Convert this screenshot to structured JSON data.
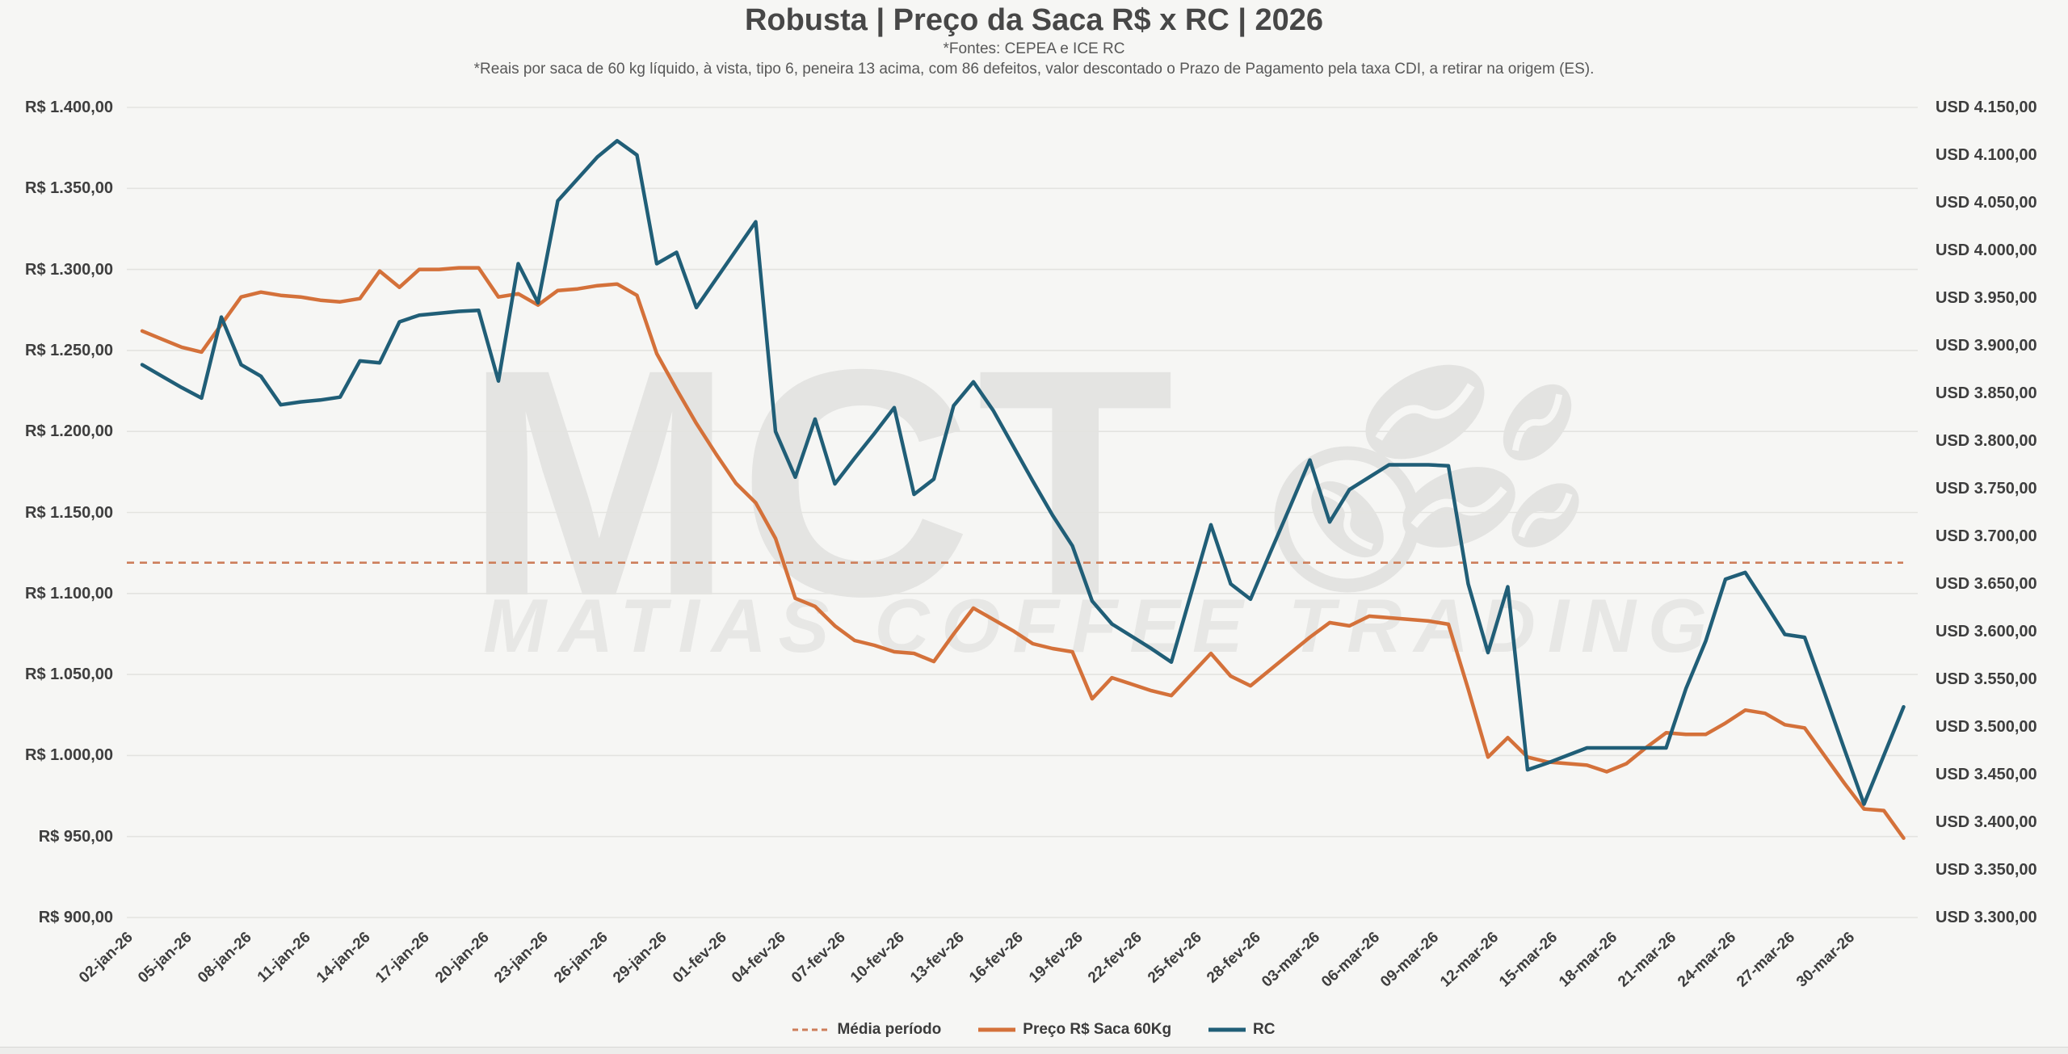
{
  "header": {
    "title": "Robusta | Preço da Saca R$ x RC | 2026",
    "subtitle1": "*Fontes: CEPEA e ICE RC",
    "subtitle2": "*Reais por saca de 60 kg líquido, à vista, tipo 6, peneira 13 acima, com 86 defeitos, valor descontado o Prazo de Pagamento pela taxa CDI, a retirar na origem (ES)."
  },
  "watermark": {
    "acronym": "MCT",
    "name": "MATIAS COFFEE TRADING",
    "color": "#e4e4e2"
  },
  "legend": [
    {
      "label": "Média período",
      "style": "dashed",
      "color": "#cd7e5a"
    },
    {
      "label": "Preço R$ Saca 60Kg",
      "style": "solid",
      "color": "#d4713a"
    },
    {
      "label": "RC",
      "style": "solid",
      "color": "#205e77"
    }
  ],
  "colors": {
    "background": "#f6f6f4",
    "gridline": "#e3e3e0",
    "media_line": "#cd7e5a",
    "price_line": "#d4713a",
    "rc_line": "#205e77",
    "axis_text": "#3e3e3e"
  },
  "chart_data": {
    "type": "line",
    "title": "Robusta | Preço da Saca R$ x RC | 2026",
    "grid": true,
    "legend_position": "bottom",
    "points_per_x_label": 3,
    "x_tick_labels": [
      "02-jan-26",
      "05-jan-26",
      "08-jan-26",
      "11-jan-26",
      "14-jan-26",
      "17-jan-26",
      "20-jan-26",
      "23-jan-26",
      "26-jan-26",
      "29-jan-26",
      "01-fev-26",
      "04-fev-26",
      "07-fev-26",
      "10-fev-26",
      "13-fev-26",
      "16-fev-26",
      "19-fev-26",
      "22-fev-26",
      "25-fev-26",
      "28-fev-26",
      "03-mar-26",
      "06-mar-26",
      "09-mar-26",
      "12-mar-26",
      "15-mar-26",
      "18-mar-26",
      "21-mar-26",
      "24-mar-26",
      "27-mar-26",
      "30-mar-26"
    ],
    "left_axis": {
      "currency": "R$",
      "min": 900,
      "max": 1400,
      "step": 50,
      "ticks": [
        "R$ 1.400,00",
        "R$ 1.350,00",
        "R$ 1.300,00",
        "R$ 1.250,00",
        "R$ 1.200,00",
        "R$ 1.150,00",
        "R$ 1.100,00",
        "R$ 1.050,00",
        "R$ 1.000,00",
        "R$ 950,00",
        "R$ 900,00"
      ]
    },
    "right_axis": {
      "currency": "USD",
      "min": 3300,
      "max": 4150,
      "step": 50,
      "ticks": [
        "USD 4.150,00",
        "USD 4.100,00",
        "USD 4.050,00",
        "USD 4.000,00",
        "USD 3.950,00",
        "USD 3.900,00",
        "USD 3.850,00",
        "USD 3.800,00",
        "USD 3.750,00",
        "USD 3.700,00",
        "USD 3.650,00",
        "USD 3.600,00",
        "USD 3.550,00",
        "USD 3.500,00",
        "USD 3.450,00",
        "USD 3.400,00",
        "USD 3.350,00",
        "USD 3.300,00"
      ]
    },
    "media_periodo": {
      "axis": "left",
      "value": 1119
    },
    "series": [
      {
        "name": "Preço R$ Saca 60Kg",
        "axis": "left",
        "color": "#d4713a",
        "values": [
          1262,
          1257,
          1252,
          1249,
          1266,
          1283,
          1286,
          1284,
          1283,
          1281,
          1280,
          1282,
          1299,
          1289,
          1300,
          1300,
          1301,
          1301,
          1283,
          1285,
          1278,
          1287,
          1288,
          1290,
          1291,
          1284,
          1248,
          1226,
          1205,
          1186,
          1168,
          1156,
          1134,
          1097,
          1092,
          1080,
          1071,
          1068,
          1064,
          1063,
          1058,
          1075,
          1091,
          1084,
          1077,
          1069,
          1066,
          1064,
          1035,
          1048,
          1044,
          1040,
          1037,
          1050,
          1063,
          1049,
          1043,
          1053,
          1063,
          1073,
          1082,
          1080,
          1086,
          1085,
          1084,
          1083,
          1081,
          1041,
          999,
          1011,
          999,
          996,
          995,
          994,
          990,
          995,
          1005,
          1014,
          1013,
          1013,
          1020,
          1028,
          1026,
          1019,
          1017,
          1000,
          983,
          967,
          966,
          949
        ]
      },
      {
        "name": "RC",
        "axis": "right",
        "color": "#205e77",
        "values": [
          3880,
          3868,
          3856,
          3845,
          3930,
          3880,
          3868,
          3838,
          3841,
          3843,
          3846,
          3884,
          3882,
          3925,
          3932,
          3934,
          3936,
          3937,
          3863,
          3986,
          3945,
          4052,
          4075,
          4098,
          4115,
          4100,
          3986,
          3998,
          3940,
          3970,
          4000,
          4030,
          3810,
          3762,
          3823,
          3755,
          3782,
          3808,
          3835,
          3744,
          3760,
          3837,
          3862,
          3832,
          3795,
          3758,
          3722,
          3690,
          3632,
          3608,
          3595,
          3582,
          3568,
          3640,
          3712,
          3650,
          3634,
          3683,
          3731,
          3780,
          3715,
          3749,
          3762,
          3775,
          3775,
          3775,
          3774,
          3650,
          3578,
          3647,
          3455,
          3462,
          3470,
          3478,
          3478,
          3478,
          3478,
          3478,
          3540,
          3590,
          3655,
          3662,
          3630,
          3597,
          3594,
          3536,
          3477,
          3419,
          3470,
          3521
        ]
      }
    ]
  }
}
